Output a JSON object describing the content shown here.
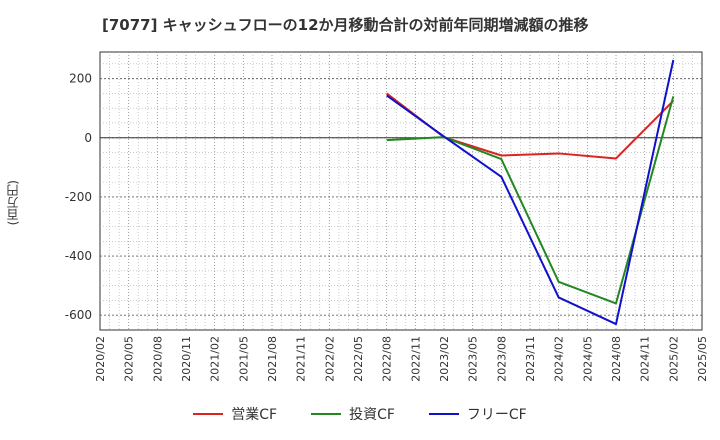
{
  "chart_data": {
    "type": "line",
    "title": "[7077]  キャッシュフローの12か月移動合計の対前年同期増減額の推移",
    "ylabel": "(百万円)",
    "xlabel": "",
    "ylim": [
      -650,
      290
    ],
    "y_ticks": [
      200,
      0,
      -200,
      -400,
      -600
    ],
    "y_tick_labels": [
      "200",
      "0",
      "-200",
      "-400",
      "-600"
    ],
    "x_ticks": [
      "2020/02",
      "2020/05",
      "2020/08",
      "2020/11",
      "2021/02",
      "2021/05",
      "2021/08",
      "2021/11",
      "2022/02",
      "2022/05",
      "2022/08",
      "2022/11",
      "2023/02",
      "2023/05",
      "2023/08",
      "2023/11",
      "2024/02",
      "2024/05",
      "2024/08",
      "2024/11",
      "2025/02",
      "2025/05"
    ],
    "grid": true,
    "legend_position": "bottom",
    "series": [
      {
        "name": "営業CF",
        "color": "#dd2222",
        "x": [
          "2022/08",
          "2023/02",
          "2023/08",
          "2024/02",
          "2024/08",
          "2025/02"
        ],
        "values": [
          150,
          2,
          -60,
          -53,
          -70,
          125
        ]
      },
      {
        "name": "投資CF",
        "color": "#228822",
        "x": [
          "2022/08",
          "2023/02",
          "2023/08",
          "2024/02",
          "2024/08",
          "2025/02"
        ],
        "values": [
          -8,
          2,
          -72,
          -487,
          -560,
          140
        ]
      },
      {
        "name": "フリーCF",
        "color": "#1111cc",
        "x": [
          "2022/08",
          "2023/02",
          "2023/08",
          "2024/02",
          "2024/08",
          "2025/02"
        ],
        "values": [
          143,
          4,
          -132,
          -540,
          -630,
          263
        ]
      }
    ]
  }
}
